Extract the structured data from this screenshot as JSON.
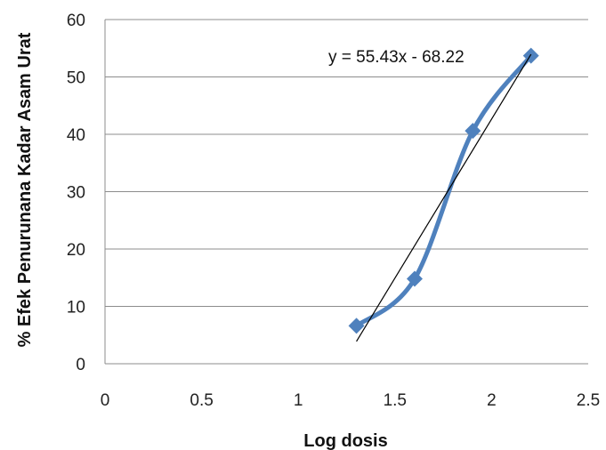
{
  "chart_data": {
    "type": "scatter",
    "title": "",
    "xlabel": "Log dosis",
    "ylabel": "% Efek Penurunana Kadar Asam Urat",
    "xlim": [
      0,
      2.5
    ],
    "ylim": [
      0,
      60
    ],
    "x_ticks": [
      0,
      0.5,
      1,
      1.5,
      2,
      2.5
    ],
    "y_ticks": [
      0,
      10,
      20,
      30,
      40,
      50,
      60
    ],
    "x_tick_labels": [
      "0",
      "0.5",
      "1",
      "1.5",
      "2",
      "2.5"
    ],
    "y_tick_labels": [
      "0",
      "10",
      "20",
      "30",
      "40",
      "50",
      "60"
    ],
    "grid": "horizontal",
    "legend": "none",
    "series": [
      {
        "x": [
          1.301,
          1.602,
          1.903,
          2.204
        ],
        "values": [
          6.6,
          14.8,
          40.6,
          53.7
        ],
        "color": "#4f81bd",
        "marker": "diamond",
        "smooth_line": true
      }
    ],
    "trendline": {
      "slope": 55.43,
      "intercept": -68.22,
      "x_range": [
        1.301,
        2.204
      ],
      "color": "#000000",
      "equation_label": "y = 55.43x - 68.22"
    }
  }
}
